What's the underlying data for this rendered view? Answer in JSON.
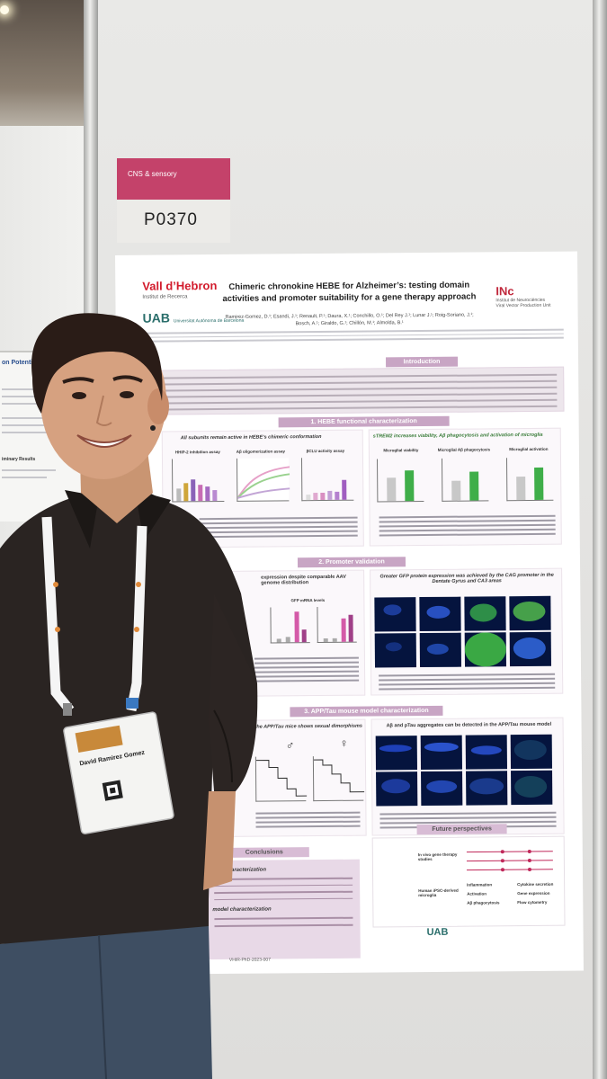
{
  "tag": {
    "category": "CNS & sensory",
    "code": "P0370"
  },
  "left_poster": {
    "title_fragment": "on Potential",
    "results_heading": "iminary Results"
  },
  "poster": {
    "title_line1": "Chimeric chronokine HEBE for Alzheimer’s: testing domain",
    "title_line2": "activities and promoter suitability for a gene therapy approach",
    "authors_line1": "Ramirez-Gomez, D.¹; Esandi, J.¹; Renault, P.¹; Daura, X.¹; Conchillo, O.¹; Del Rey J.¹; Lunar J.¹; Roig-Soriano, J.¹;",
    "authors_line2": "Bosch, A.¹; Giraldo, G.¹; Chillón, M.¹; Almolda, B.¹",
    "logo_left": "Vall d’Hebron",
    "logo_left_sub": "Institut de Recerca",
    "logo_uab": "UAB",
    "logo_uab_sub": "Universitat Autònoma de Barcelona",
    "logo_right": "INc",
    "logo_right_sub": "Institut de Neurociències",
    "logo_right_unit": "Viral Vector Production Unit",
    "sections": {
      "introduction": "Introduction",
      "s1": "1. HEBE functional characterization",
      "s1_left_sub": "All subunits remain active in HEBE’s chimeric conformation",
      "s1_right_sub": "sTREM2 increases viability, Aβ phagocytosis and activation of microglia",
      "s2": "2. Promoter validation",
      "s2_left_sub": "expression despite comparable AAV genome distribution",
      "s2_right_sub": "Greater GFP protein expression was achieved by the CAG promoter in the Dentate Gyrus and CA3 areas",
      "s3": "3. APP/Tau mouse model characterization",
      "s3_left_sub": "the APP/Tau mice shows sexual dimorphisms",
      "s3_right_sub": "Aβ and pTau aggregates can be detected in the APP/Tau mouse model",
      "conclusions": "Conclusions",
      "future": "Future perspectives"
    },
    "chart_captions": {
      "c1": "HHIP-2 inhibition assay",
      "c2": "Aβ oligomerization assay",
      "c3": "βCLU activity assay",
      "c4": "Microglial viability",
      "c5": "Microglial Aβ phagocytosis",
      "c6": "Microglial activation",
      "c7": "GFP mRNA levels"
    },
    "future": {
      "in_vivo": "In vivo gene therapy studies",
      "ipsc": "Human iPSC-derived microglia",
      "inflammation": "Inflammation",
      "activation": "Activation",
      "phagocytosis": "Aβ phagocytosis",
      "cytokine": "Cytokine secretion",
      "gene_expr": "Gene expression",
      "flow": "Flow cytometry"
    },
    "conclusions": {
      "h1": "onal characterization",
      "h2": "model characterization"
    },
    "footer_code": "VHIR-PhD-2023-007"
  },
  "badge": {
    "name": "David Ramirez Gomez"
  }
}
